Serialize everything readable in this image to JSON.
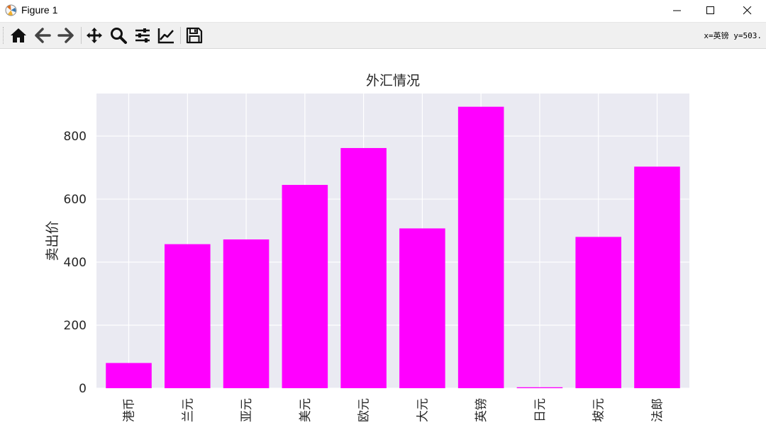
{
  "window": {
    "title": "Figure 1",
    "icons": {
      "app": "matplotlib-icon",
      "minimize": "minimize-icon",
      "maximize": "maximize-icon",
      "close": "close-icon"
    }
  },
  "toolbar": {
    "buttons": [
      {
        "icon": "home-icon"
      },
      {
        "icon": "back-arrow-icon"
      },
      {
        "icon": "forward-arrow-icon"
      },
      {
        "icon": "pan-icon"
      },
      {
        "icon": "zoom-icon"
      },
      {
        "icon": "configure-subplots-icon"
      },
      {
        "icon": "edit-axis-icon"
      },
      {
        "icon": "save-icon"
      }
    ],
    "coords": "x=英镑 y=503."
  },
  "chart_data": {
    "type": "bar",
    "title": "外汇情况",
    "xlabel": "",
    "ylabel": "卖出价",
    "categories": [
      "港币",
      "兰元",
      "亚元",
      "美元",
      "欧元",
      "大元",
      "英镑",
      "日元",
      "坡元",
      "法郎"
    ],
    "values": [
      80,
      457,
      472,
      645,
      762,
      507,
      893,
      3,
      480,
      703
    ],
    "ylim": [
      0,
      935
    ],
    "yticks": [
      0,
      200,
      400,
      600,
      800
    ],
    "grid": true,
    "bar_color": "#ff00ff",
    "plot_background": "#eaeaf2",
    "grid_color": "#ffffff"
  }
}
